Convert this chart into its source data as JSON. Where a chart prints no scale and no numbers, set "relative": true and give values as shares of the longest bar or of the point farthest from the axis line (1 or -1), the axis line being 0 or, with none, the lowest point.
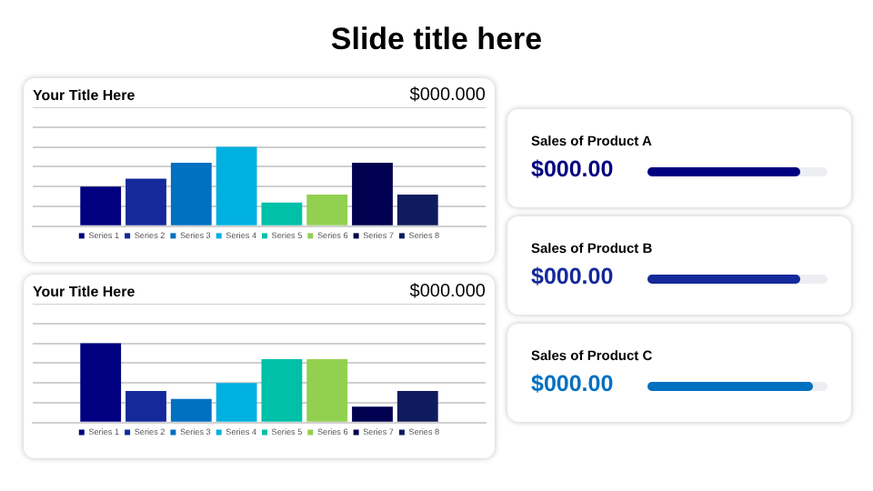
{
  "chart_data": [
    {
      "type": "bar",
      "title": "Your Title Here",
      "relative": true,
      "grid": "y",
      "legend": "bottom",
      "categories": [
        null
      ],
      "annotations": [
        "Slide title here",
        "$000.000"
      ],
      "series": [
        {
          "name": "Series 1",
          "color": "#000080",
          "values": [
            0.5
          ]
        },
        {
          "name": "Series 2",
          "color": "#14299a",
          "values": [
            0.6
          ]
        },
        {
          "name": "Series 3",
          "color": "#0070c0",
          "values": [
            0.8
          ]
        },
        {
          "name": "Series 4",
          "color": "#00b0e0",
          "values": [
            1
          ]
        },
        {
          "name": "Series 5",
          "color": "#00c0a8",
          "values": [
            0.3
          ]
        },
        {
          "name": "Series 6",
          "color": "#92d050",
          "values": [
            0.4
          ]
        },
        {
          "name": "Series 7",
          "color": "#000050",
          "values": [
            0.8
          ]
        },
        {
          "name": "Series 8",
          "color": "#0e1c5e",
          "values": [
            0.4
          ]
        }
      ]
    },
    {
      "type": "bar",
      "title": "Your Title Here",
      "relative": true,
      "grid": "y",
      "legend": "bottom",
      "categories": [
        null
      ],
      "annotations": [
        "$000.000"
      ],
      "series": [
        {
          "name": "Series 1",
          "color": "#000080",
          "values": [
            1
          ]
        },
        {
          "name": "Series 2",
          "color": "#14299a",
          "values": [
            0.4
          ]
        },
        {
          "name": "Series 3",
          "color": "#0070c0",
          "values": [
            0.3
          ]
        },
        {
          "name": "Series 4",
          "color": "#00b0e0",
          "values": [
            0.5
          ]
        },
        {
          "name": "Series 5",
          "color": "#00c0a8",
          "values": [
            0.8
          ]
        },
        {
          "name": "Series 6",
          "color": "#92d050",
          "values": [
            0.8
          ]
        },
        {
          "name": "Series 7",
          "color": "#000050",
          "values": [
            0.2
          ]
        },
        {
          "name": "Series 8",
          "color": "#0e1c5e",
          "values": [
            0.4
          ]
        }
      ]
    },
    {
      "type": "other",
      "annotations": [
        "Sales of Product A",
        "$000.00",
        "Sales of Product B",
        "$000.00",
        "Sales of Product C",
        "$000.00"
      ]
    }
  ]
}
